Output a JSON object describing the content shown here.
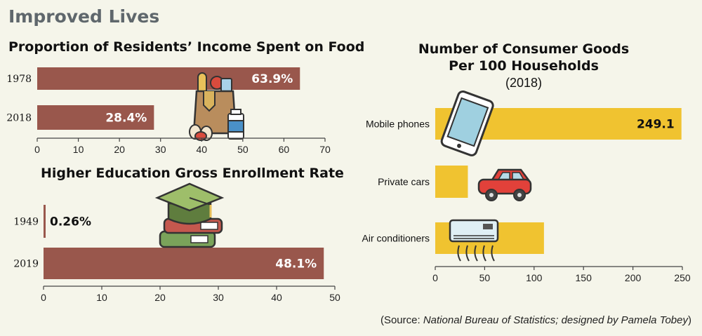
{
  "header": {
    "title": "Improved Lives"
  },
  "source": {
    "prefix": "(Source: ",
    "name": "National Bureau of Statistics; designed by Pamela Tobey",
    "suffix": ")"
  },
  "colors": {
    "brown": "#99574c",
    "yellow": "#f0c330",
    "title": "#5f676c",
    "background": "#f5f5ea"
  },
  "chart_data": [
    {
      "type": "bar",
      "orientation": "horizontal",
      "title": "Proportion of  Residents’ Income Spent on Food",
      "categories": [
        "1978",
        "2018"
      ],
      "values": [
        63.9,
        28.4
      ],
      "value_labels": [
        "63.9%",
        "28.4%"
      ],
      "xlim": [
        0,
        70
      ],
      "xticks": [
        0,
        10,
        20,
        30,
        40,
        50,
        60,
        70
      ],
      "icon": "grocery-bag-icon"
    },
    {
      "type": "bar",
      "orientation": "horizontal",
      "title": "Higher Education Gross Enrollment Rate",
      "categories": [
        "1949",
        "2019"
      ],
      "values": [
        0.26,
        48.1
      ],
      "value_labels": [
        "0.26%",
        "48.1%"
      ],
      "xlim": [
        0,
        50
      ],
      "xticks": [
        0,
        10,
        20,
        30,
        40,
        50
      ],
      "icon": "graduation-cap-books-icon"
    },
    {
      "type": "bar",
      "orientation": "horizontal",
      "title_lines": [
        "Number of  Consumer Goods",
        "Per 100  Households"
      ],
      "subtitle": "(2018)",
      "categories": [
        "Mobile phones",
        "Private cars",
        "Air conditioners"
      ],
      "values": [
        249.1,
        33,
        110
      ],
      "value_labels": [
        "249.1",
        "",
        ""
      ],
      "xlim": [
        0,
        250
      ],
      "xticks": [
        0,
        50,
        100,
        150,
        200,
        250
      ],
      "icons": [
        "mobile-phone-icon",
        "car-icon",
        "air-conditioner-icon"
      ]
    }
  ]
}
